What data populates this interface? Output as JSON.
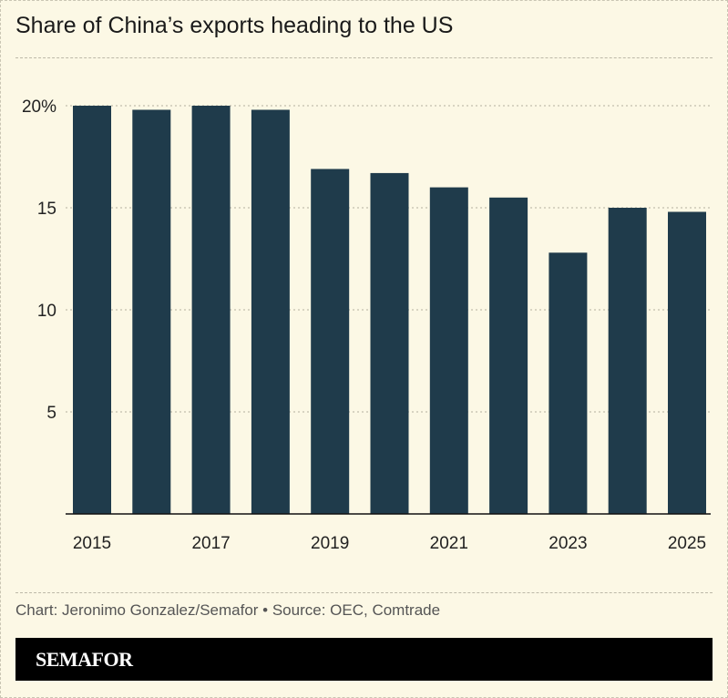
{
  "chart_data": {
    "type": "bar",
    "title": "Share of China’s exports heading to the US",
    "categories": [
      "2015",
      "2016",
      "2017",
      "2018",
      "2019",
      "2020",
      "2021",
      "2022",
      "2023",
      "2024",
      "2025"
    ],
    "values": [
      20.0,
      19.8,
      20.0,
      19.8,
      16.9,
      16.7,
      16.0,
      15.5,
      12.8,
      15.0,
      14.8
    ],
    "x_tick_labels": [
      "2015",
      "2017",
      "2019",
      "2021",
      "2023",
      "2025"
    ],
    "y_ticks": [
      5,
      10,
      15,
      20
    ],
    "y_tick_labels": [
      "5",
      "10",
      "15",
      "20%"
    ],
    "ylim": [
      0,
      20
    ],
    "grid": true,
    "bar_color": "#1f3b4b"
  },
  "footer": {
    "credit": "Chart: Jeronimo Gonzalez/Semafor • Source: OEC, Comtrade",
    "logo": "SEMAFOR"
  }
}
